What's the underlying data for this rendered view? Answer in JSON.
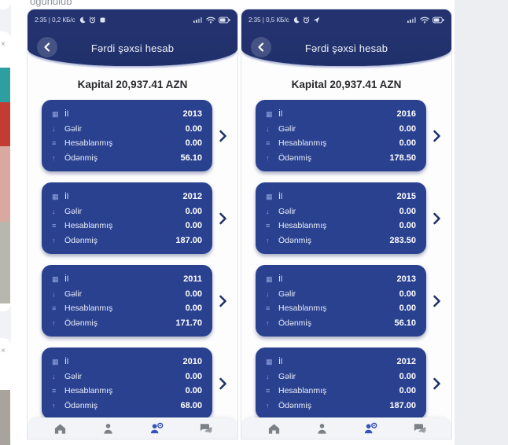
{
  "page": {
    "top_text_fragment": "oğunulub"
  },
  "phones": [
    {
      "status": {
        "time_and_speed": "2:35 | 0,2 КБ/с"
      },
      "header": {
        "title": "Fərdi şəxsi hesab"
      },
      "capital": "Kapital 20,937.41 AZN",
      "cards": [
        {
          "rows": [
            {
              "icon": "calendar-icon",
              "label": "İl",
              "value": "2013"
            },
            {
              "icon": "income-icon",
              "label": "Gəlir",
              "value": "0.00"
            },
            {
              "icon": "calculated-icon",
              "label": "Hesablanmış",
              "value": "0.00"
            },
            {
              "icon": "paid-icon",
              "label": "Ödənmiş",
              "value": "56.10"
            }
          ]
        },
        {
          "rows": [
            {
              "icon": "calendar-icon",
              "label": "İl",
              "value": "2012"
            },
            {
              "icon": "income-icon",
              "label": "Gəlir",
              "value": "0.00"
            },
            {
              "icon": "calculated-icon",
              "label": "Hesablanmış",
              "value": "0.00"
            },
            {
              "icon": "paid-icon",
              "label": "Ödənmiş",
              "value": "187.00"
            }
          ]
        },
        {
          "rows": [
            {
              "icon": "calendar-icon",
              "label": "İl",
              "value": "2011"
            },
            {
              "icon": "income-icon",
              "label": "Gəlir",
              "value": "0.00"
            },
            {
              "icon": "calculated-icon",
              "label": "Hesablanmış",
              "value": "0.00"
            },
            {
              "icon": "paid-icon",
              "label": "Ödənmiş",
              "value": "171.70"
            }
          ]
        },
        {
          "rows": [
            {
              "icon": "calendar-icon",
              "label": "İl",
              "value": "2010"
            },
            {
              "icon": "income-icon",
              "label": "Gəlir",
              "value": "0.00"
            },
            {
              "icon": "calculated-icon",
              "label": "Hesablanmış",
              "value": "0.00"
            },
            {
              "icon": "paid-icon",
              "label": "Ödənmiş",
              "value": "68.00"
            }
          ]
        }
      ]
    },
    {
      "status": {
        "time_and_speed": "2:35 | 0,5 КБ/с"
      },
      "header": {
        "title": "Fərdi şəxsi hesab"
      },
      "capital": "Kapital 20,937.41 AZN",
      "cards": [
        {
          "rows": [
            {
              "icon": "calendar-icon",
              "label": "İl",
              "value": "2016"
            },
            {
              "icon": "income-icon",
              "label": "Gəlir",
              "value": "0.00"
            },
            {
              "icon": "calculated-icon",
              "label": "Hesablanmış",
              "value": "0.00"
            },
            {
              "icon": "paid-icon",
              "label": "Ödənmiş",
              "value": "178.50"
            }
          ]
        },
        {
          "rows": [
            {
              "icon": "calendar-icon",
              "label": "İl",
              "value": "2015"
            },
            {
              "icon": "income-icon",
              "label": "Gəlir",
              "value": "0.00"
            },
            {
              "icon": "calculated-icon",
              "label": "Hesablanmış",
              "value": "0.00"
            },
            {
              "icon": "paid-icon",
              "label": "Ödənmiş",
              "value": "283.50"
            }
          ]
        },
        {
          "rows": [
            {
              "icon": "calendar-icon",
              "label": "İl",
              "value": "2013"
            },
            {
              "icon": "income-icon",
              "label": "Gəlir",
              "value": "0.00"
            },
            {
              "icon": "calculated-icon",
              "label": "Hesablanmış",
              "value": "0.00"
            },
            {
              "icon": "paid-icon",
              "label": "Ödənmiş",
              "value": "56.10"
            }
          ]
        },
        {
          "rows": [
            {
              "icon": "calendar-icon",
              "label": "İl",
              "value": "2012"
            },
            {
              "icon": "income-icon",
              "label": "Gəlir",
              "value": "0.00"
            },
            {
              "icon": "calculated-icon",
              "label": "Hesablanmış",
              "value": "0.00"
            },
            {
              "icon": "paid-icon",
              "label": "Ödənmiş",
              "value": "187.00"
            }
          ]
        }
      ]
    }
  ],
  "colors": {
    "header_navy": "#24336f",
    "card_navy": "#2a4190",
    "nav_active_blue": "#3553bb"
  }
}
